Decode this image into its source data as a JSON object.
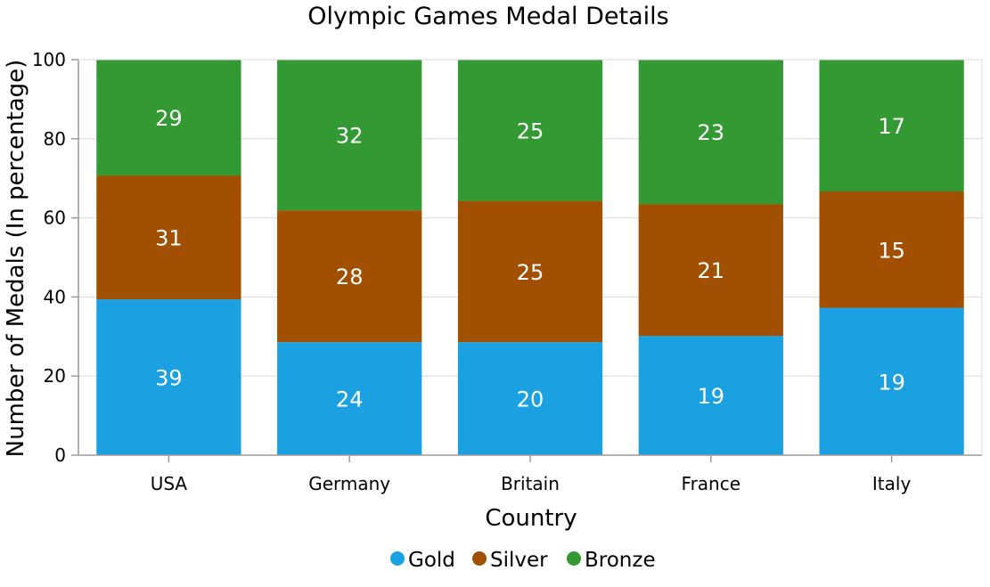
{
  "chart_data": {
    "type": "bar",
    "stacking": "percent",
    "title": "Olympic Games Medal Details",
    "xlabel": "Country",
    "ylabel": "Number of Medals (In percentage)",
    "ylim": [
      0,
      100
    ],
    "yticks": [
      0,
      20,
      40,
      60,
      80,
      100
    ],
    "grid": true,
    "legend_position": "bottom",
    "categories": [
      "USA",
      "Germany",
      "Britain",
      "France",
      "Italy"
    ],
    "series": [
      {
        "name": "Gold",
        "color": "#1ba1e2",
        "values": [
          39,
          24,
          20,
          19,
          19
        ]
      },
      {
        "name": "Silver",
        "color": "#a05000",
        "values": [
          31,
          28,
          25,
          21,
          15
        ]
      },
      {
        "name": "Bronze",
        "color": "#339933",
        "values": [
          29,
          32,
          25,
          23,
          17
        ]
      }
    ]
  }
}
